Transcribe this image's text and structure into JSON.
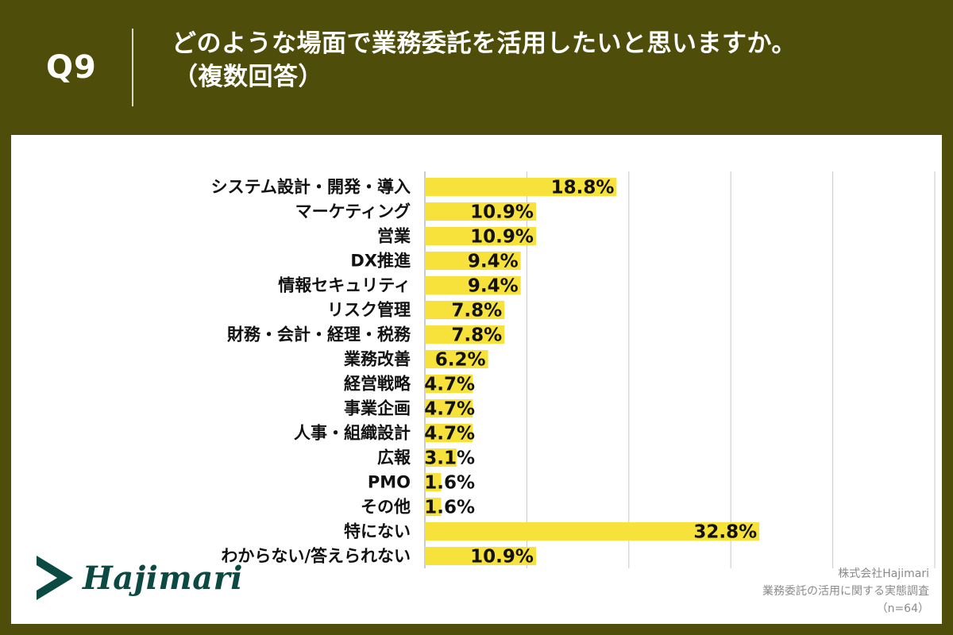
{
  "header": {
    "question_number": "Q9",
    "title_line1": "どのような場面で業務委託を活用したいと思いますか。",
    "title_line2": "（複数回答）"
  },
  "colors": {
    "header_bg": "#4e4d0a",
    "bar": "#f7e23b",
    "grid": "#c8c8c8",
    "logo": "#0a4a42"
  },
  "logo": {
    "icon": "chevron-arrow-icon",
    "text": "Hajimari"
  },
  "source": {
    "company": "株式会社Hajimari",
    "survey": "業務委託の活用に関する実態調査",
    "sample": "（n=64）"
  },
  "chart_data": {
    "type": "bar",
    "orientation": "horizontal",
    "title": "どのような場面で業務委託を活用したいと思いますか。（複数回答）",
    "xlabel": "",
    "ylabel": "",
    "xlim": [
      0,
      50
    ],
    "gridlines": [
      0,
      10,
      20,
      30,
      40,
      50
    ],
    "value_suffix": "%",
    "categories": [
      "システム設計・開発・導入",
      "マーケティング",
      "営業",
      "DX推進",
      "情報セキュリティ",
      "リスク管理",
      "財務・会計・経理・税務",
      "業務改善",
      "経営戦略",
      "事業企画",
      "人事・組織設計",
      "広報",
      "PMO",
      "その他",
      "特にない",
      "わからない/答えられない"
    ],
    "values": [
      18.8,
      10.9,
      10.9,
      9.4,
      9.4,
      7.8,
      7.8,
      6.2,
      4.7,
      4.7,
      4.7,
      3.1,
      1.6,
      1.6,
      32.8,
      10.9
    ]
  }
}
